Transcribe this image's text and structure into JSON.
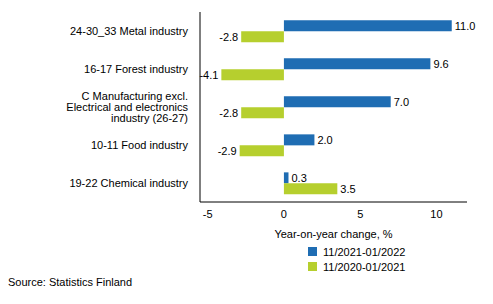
{
  "chart_data": {
    "type": "bar",
    "orientation": "horizontal",
    "categories": [
      "24-30_33 Metal industry",
      "16-17 Forest industry",
      "C Manufacturing excl. Electrical and electronics industry (26-27)",
      "10-11 Food industry",
      "19-22 Chemical industry"
    ],
    "series": [
      {
        "name": "11/2021-01/2022",
        "color": "#1f6db3",
        "values": [
          11.0,
          9.6,
          7.0,
          2.0,
          0.3
        ],
        "value_labels": [
          "11.0",
          "9.6",
          "7.0",
          "2.0",
          "0.3"
        ]
      },
      {
        "name": "11/2020-01/2021",
        "color": "#b6cf2e",
        "values": [
          -2.8,
          -4.1,
          -2.8,
          -2.9,
          3.5
        ],
        "value_labels": [
          "-2.8",
          "-4.1",
          "-2.8",
          "-2.9",
          "3.5"
        ]
      }
    ],
    "xlabel": "Year-on-year change, %",
    "xlim": [
      -5.5,
      12
    ],
    "xticks": [
      -5,
      0,
      5,
      10
    ],
    "grid": false,
    "data_labels": true,
    "legend": "bottom right",
    "source": "Source: Statistics Finland"
  }
}
